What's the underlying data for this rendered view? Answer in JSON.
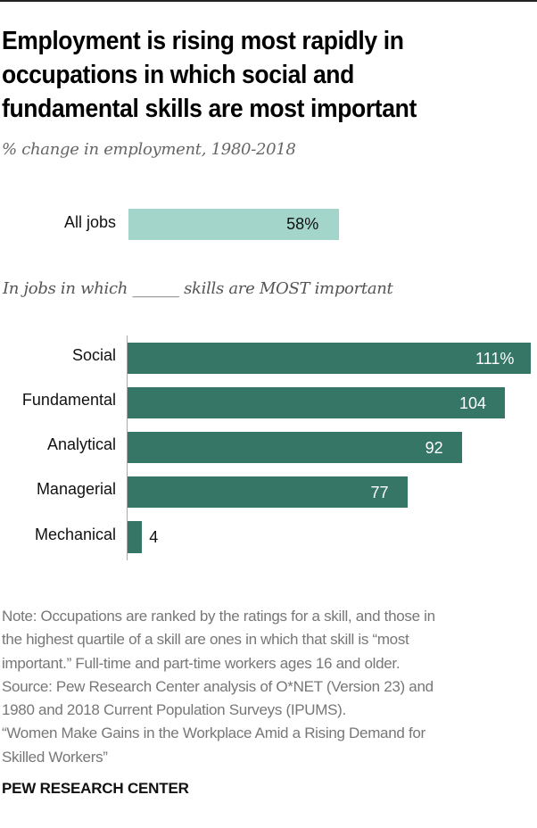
{
  "header": {
    "title_lines": [
      "Employment is rising most rapidly in",
      "occupations in which social and",
      "fundamental skills are most important"
    ],
    "subtitle": "% change in employment, 1980-2018"
  },
  "all_jobs": {
    "label": "All jobs",
    "value": 58,
    "value_label": "58%",
    "color": "#a3d5ca"
  },
  "section_label": "In jobs in which ______ skills are MOST important",
  "colors": {
    "bar": "#367667",
    "bar_text_inside": "#ffffff",
    "bar_text_outside": "#111111"
  },
  "chart_data": {
    "type": "bar",
    "orientation": "horizontal",
    "title": "Employment is rising most rapidly in occupations in which social and fundamental skills are most important",
    "subtitle": "% change in employment, 1980-2018",
    "xlabel": "",
    "ylabel": "",
    "grid": false,
    "reference": {
      "label": "All jobs",
      "value": 58,
      "display": "58%"
    },
    "group_label": "In jobs in which ______ skills are MOST important",
    "categories": [
      "Social",
      "Fundamental",
      "Analytical",
      "Managerial",
      "Mechanical"
    ],
    "values": [
      111,
      104,
      92,
      77,
      4
    ],
    "value_labels": [
      "111%",
      "104",
      "92",
      "77",
      "4"
    ],
    "xlim": [
      0,
      111
    ]
  },
  "footer": {
    "notes": [
      "Note: Occupations are ranked by the ratings for a skill, and those in",
      "the highest quartile of a skill are ones in which that skill is “most",
      "important.” Full-time and part-time workers ages 16 and older.",
      "Source: Pew Research Center analysis of O*NET (Version 23) and",
      "1980 and 2018 Current Population Surveys (IPUMS).",
      "“Women Make Gains in the Workplace Amid a Rising Demand for",
      "Skilled Workers”"
    ],
    "brand": "PEW RESEARCH CENTER"
  }
}
